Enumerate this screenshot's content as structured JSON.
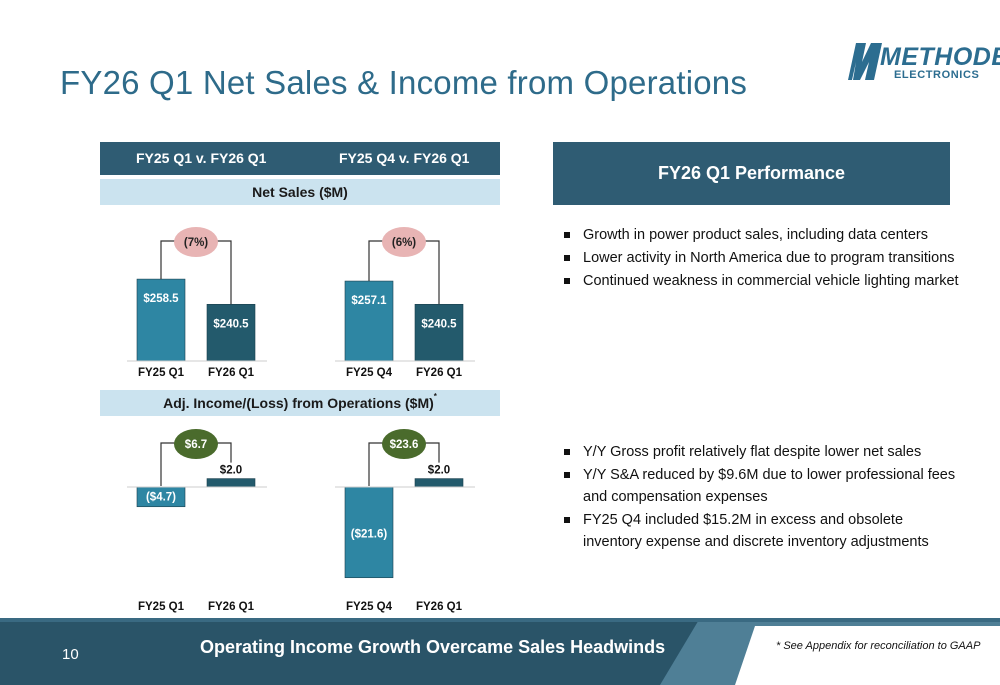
{
  "slide": {
    "title": "FY26 Q1 Net Sales & Income from Operations",
    "page_number": "10",
    "footer_text": "Operating Income Growth Overcame Sales Headwinds",
    "footer_note": "* See Appendix for reconciliation to GAAP"
  },
  "logo": {
    "name": "METHODE",
    "sub": "ELECTRONICS"
  },
  "left_panel": {
    "col1_header": "FY25 Q1 v. FY26 Q1",
    "col2_header": "FY25 Q4 v. FY26 Q1",
    "net_sales_band": "Net Sales ($M)",
    "income_band": "Adj. Income/(Loss) from Operations ($M)",
    "income_band_mark": "*"
  },
  "right_panel": {
    "performance_title": "FY26 Q1 Performance",
    "bullets_top": [
      "Growth in power product sales, including data centers",
      "Lower activity in North America due to program transitions",
      "Continued weakness in commercial vehicle lighting market"
    ],
    "bullets_bottom": [
      "Y/Y Gross profit relatively flat despite lower net sales",
      "Y/Y S&A reduced by $9.6M due to lower professional fees and compensation expenses",
      "FY25 Q4 included $15.2M in excess and obsolete inventory expense and discrete inventory adjustments"
    ]
  },
  "colors": {
    "dark_blue": "#2f5c73",
    "bar_light": "#2e86a3",
    "bar_dark": "#235a6c",
    "light_band": "#cbe3ef",
    "pink_bubble": "#e8b4b4",
    "green_bubble": "#4a6b2c",
    "title_blue": "#2e6b8a"
  },
  "chart_data": [
    {
      "type": "bar",
      "title": "Net Sales ($M)",
      "categories": [
        "FY25 Q1",
        "FY26 Q1"
      ],
      "values": [
        258.5,
        240.5
      ],
      "labels": [
        "$258.5",
        "$240.5"
      ],
      "change_label": "(7%)"
    },
    {
      "type": "bar",
      "title": "Net Sales ($M)",
      "categories": [
        "FY25 Q4",
        "FY26 Q1"
      ],
      "values": [
        257.1,
        240.5
      ],
      "labels": [
        "$257.1",
        "$240.5"
      ],
      "change_label": "(6%)"
    },
    {
      "type": "bar",
      "title": "Adj. Income/(Loss) from Operations ($M)",
      "categories": [
        "FY25 Q1",
        "FY26 Q1"
      ],
      "values": [
        -4.7,
        2.0
      ],
      "labels": [
        "($4.7)",
        "$2.0"
      ],
      "change_label": "$6.7"
    },
    {
      "type": "bar",
      "title": "Adj. Income/(Loss) from Operations ($M)",
      "categories": [
        "FY25 Q4",
        "FY26 Q1"
      ],
      "values": [
        -21.6,
        2.0
      ],
      "labels": [
        "($21.6)",
        "$2.0"
      ],
      "change_label": "$23.6"
    }
  ]
}
